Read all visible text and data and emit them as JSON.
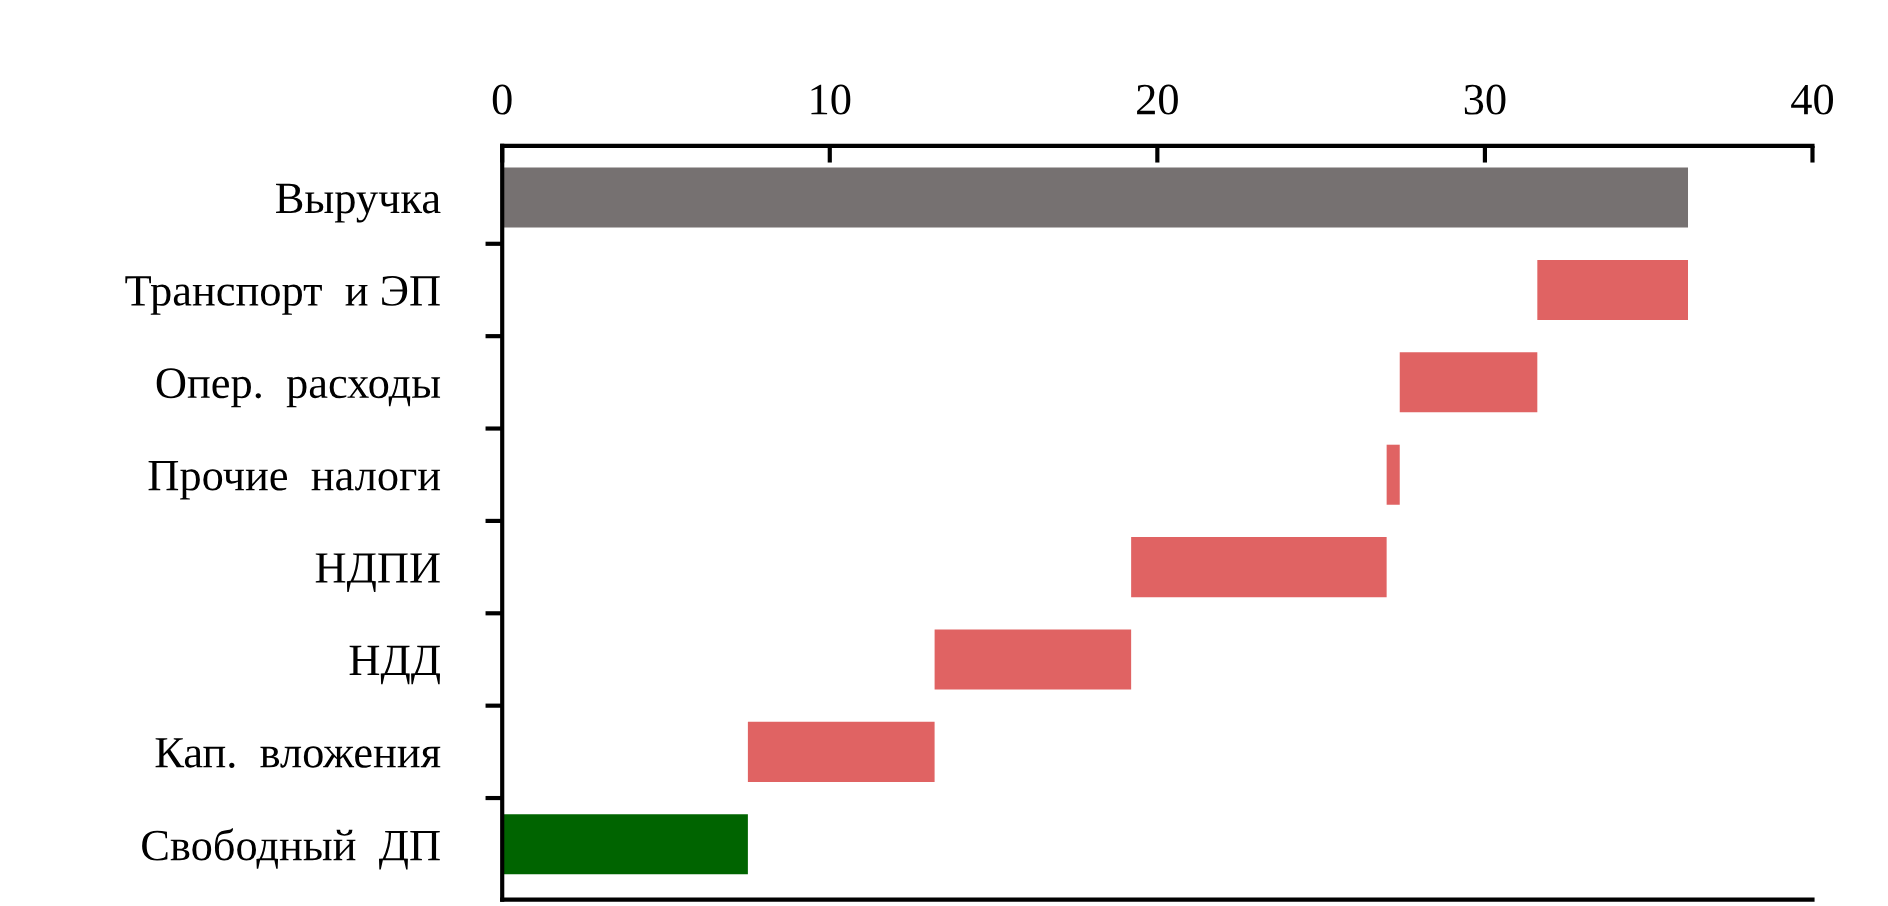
{
  "chart_data": {
    "type": "bar",
    "orientation": "horizontal",
    "categories": [
      "Выручка",
      "Транспорт  и ЭП",
      "Опер.  расходы",
      "Прочие  налоги",
      "НДПИ",
      "НДД",
      "Кап.  вложения",
      "Свободный  ДП"
    ],
    "values": [
      36.2,
      4.6,
      4.2,
      0.4,
      7.8,
      6.0,
      5.7,
      7.5
    ],
    "base": [
      0,
      31.6,
      27.4,
      27.0,
      19.2,
      13.2,
      7.5,
      0
    ],
    "colors": [
      "#767171",
      "#e06363",
      "#e06363",
      "#e06363",
      "#e06363",
      "#e06363",
      "#e06363",
      "#006400"
    ],
    "xlim": [
      0,
      40
    ],
    "xticks": [
      0,
      10,
      20,
      30,
      40
    ],
    "grid": false
  }
}
